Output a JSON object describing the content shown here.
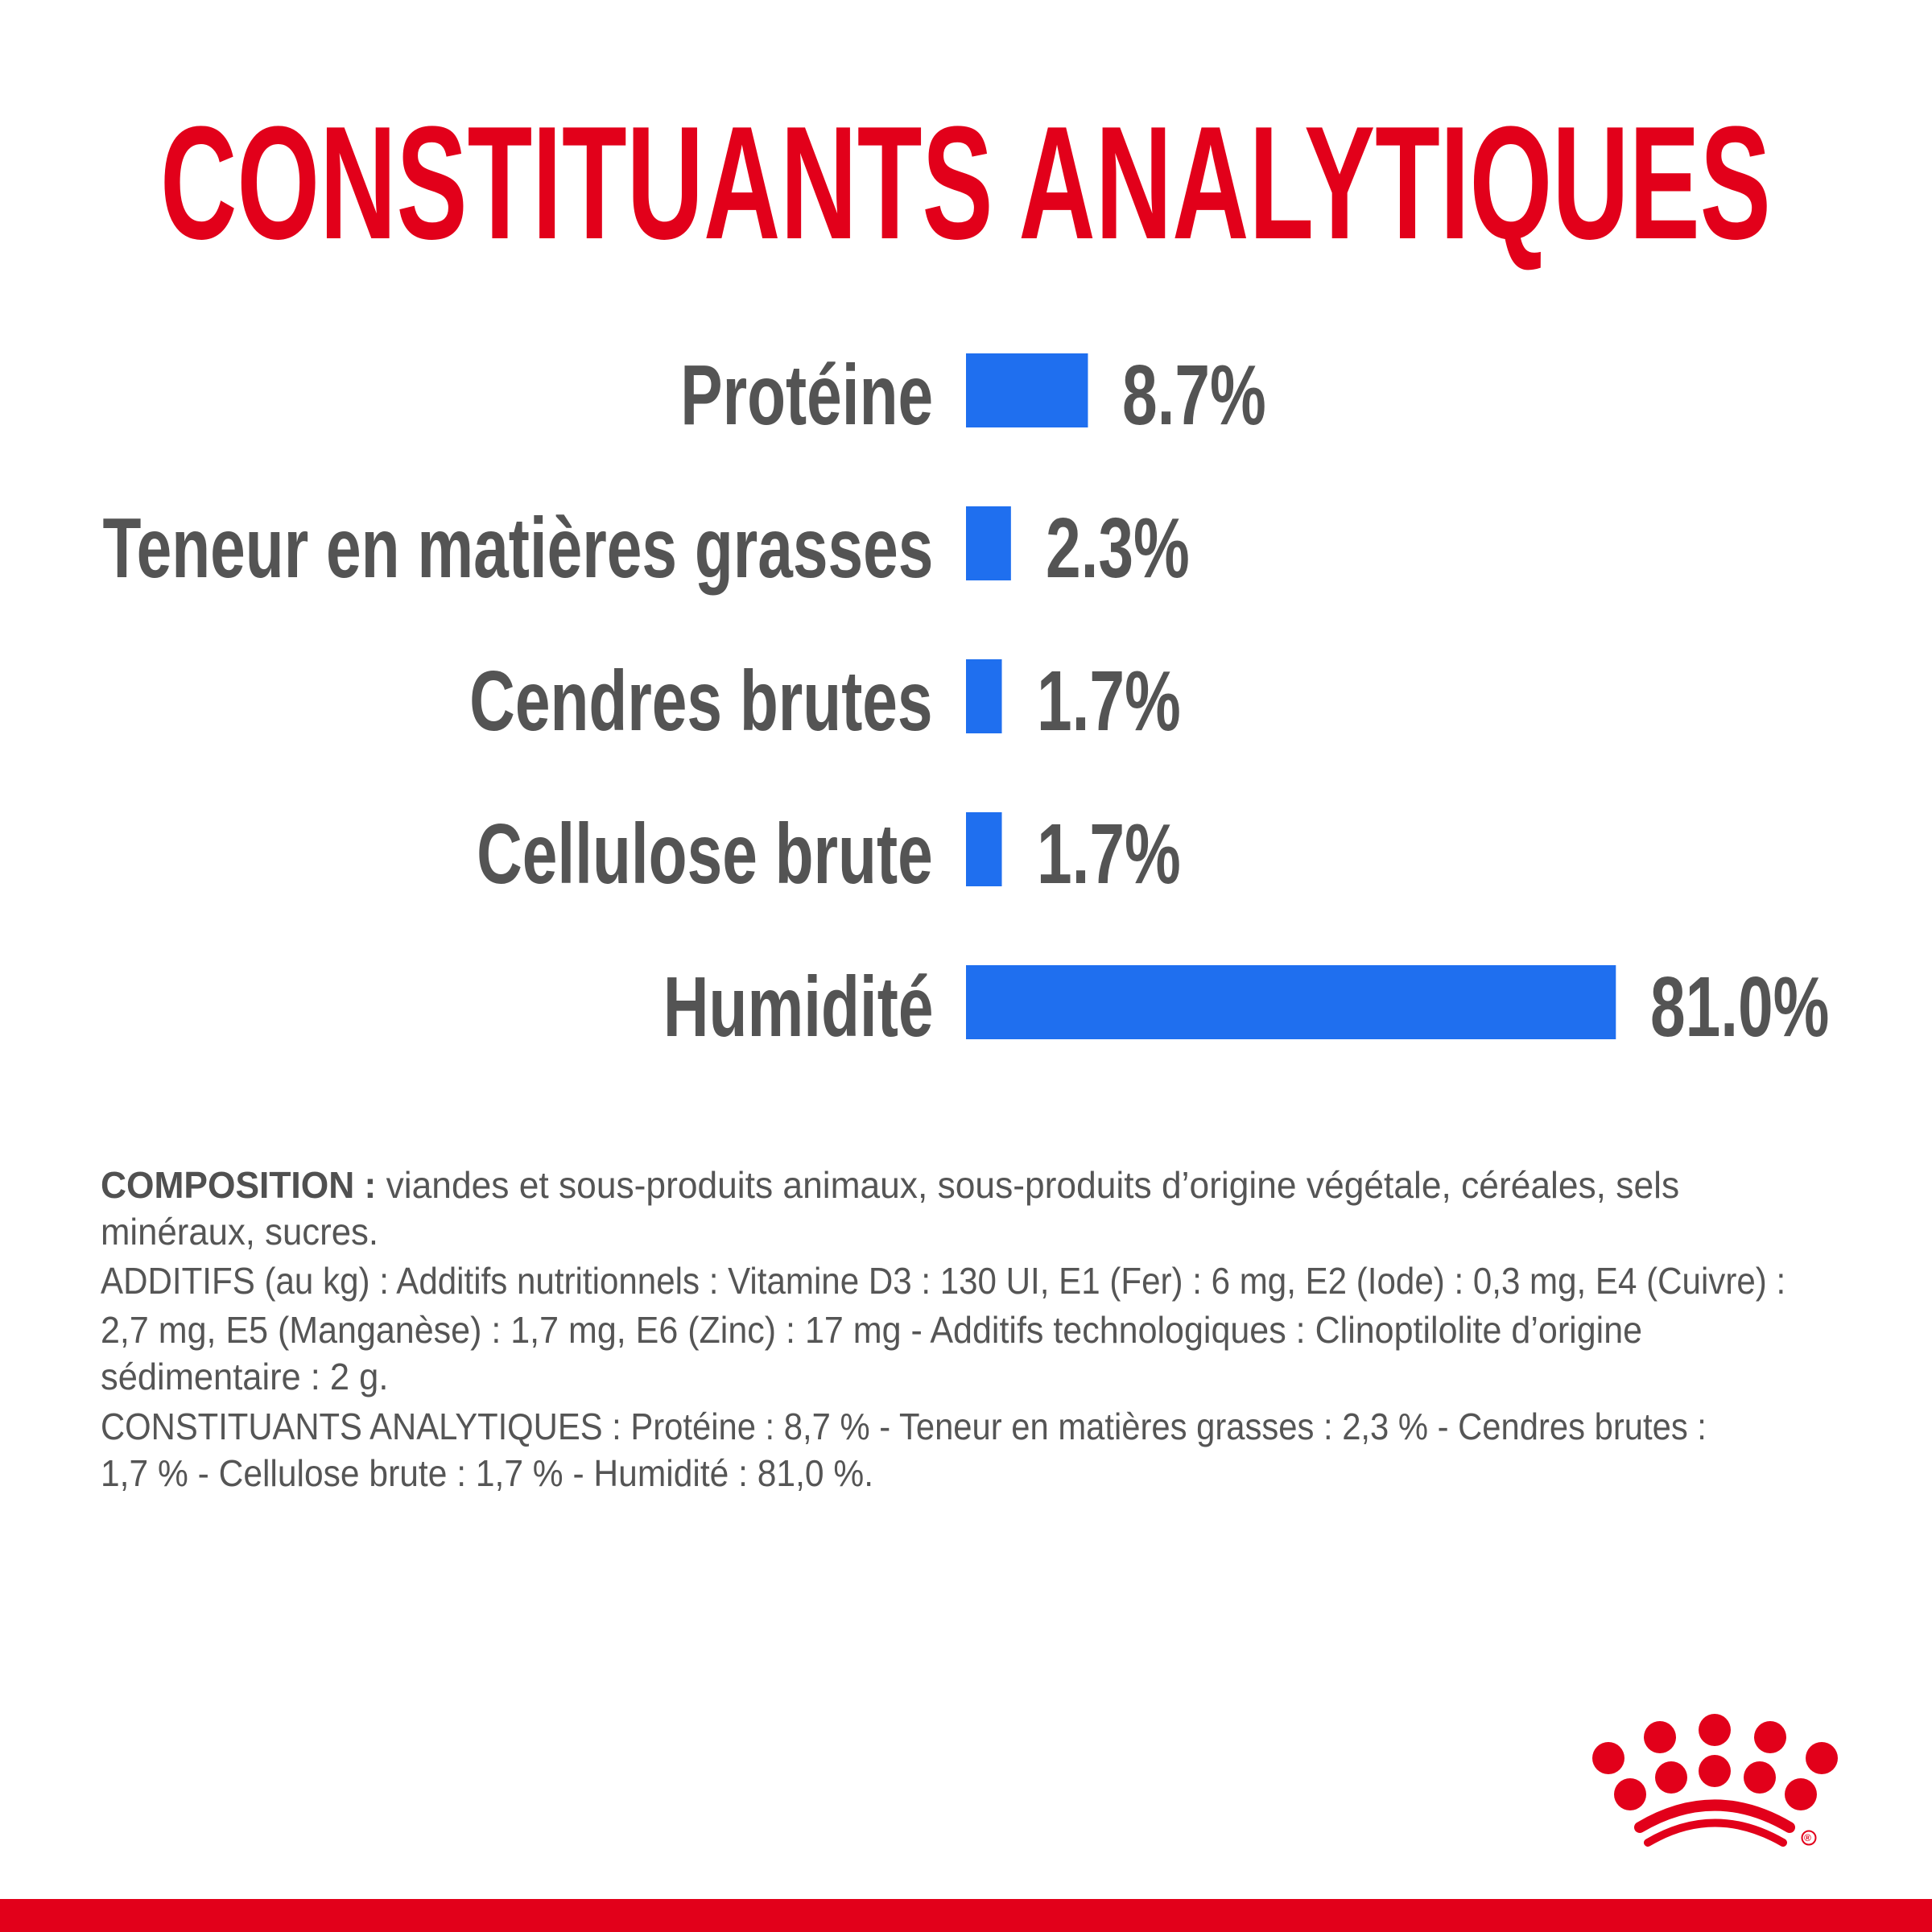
{
  "title": "CONSTITUANTS ANALYTIQUES",
  "colors": {
    "title": "#e2001a",
    "bar": "#1f6fef",
    "label": "#545454",
    "footer": "#e2001a",
    "logo": "#e2001a"
  },
  "chart_data": {
    "type": "bar",
    "orientation": "horizontal",
    "title": "CONSTITUANTS ANALYTIQUES",
    "categories": [
      "Protéine",
      "Teneur en matières grasses",
      "Cendres brutes",
      "Cellulose brute",
      "Humidité"
    ],
    "values": [
      8.7,
      2.3,
      1.7,
      1.7,
      81.0
    ],
    "value_labels": [
      "8.7%",
      "2.3%",
      "1.7%",
      "1.7%",
      "81.0%"
    ],
    "unit": "%",
    "grid": false,
    "axes_visible": false
  },
  "composition": {
    "heading": "COMPOSITION :",
    "lines": [
      " viandes et sous-produits animaux, sous-produits d’origine végétale, céréales, sels",
      "minéraux, sucres.",
      "ADDITIFS (au kg) : Additifs nutritionnels : Vitamine D3 : 130 UI, E1 (Fer) : 6 mg, E2 (Iode) : 0,3 mg, E4 (Cuivre) :",
      "2,7 mg, E5 (Manganèse) : 1,7 mg, E6 (Zinc) : 17 mg - Additifs technologiques : Clinoptilolite d’origine",
      "sédimentaire : 2 g.",
      "CONSTITUANTS ANALYTIQUES : Protéine : 8,7 % - Teneur en matières grasses : 2,3 % - Cendres brutes :",
      "1,7 % - Cellulose brute : 1,7 % - Humidité : 81,0 %."
    ]
  },
  "logo": {
    "name": "crown-logo",
    "mark": "®"
  }
}
